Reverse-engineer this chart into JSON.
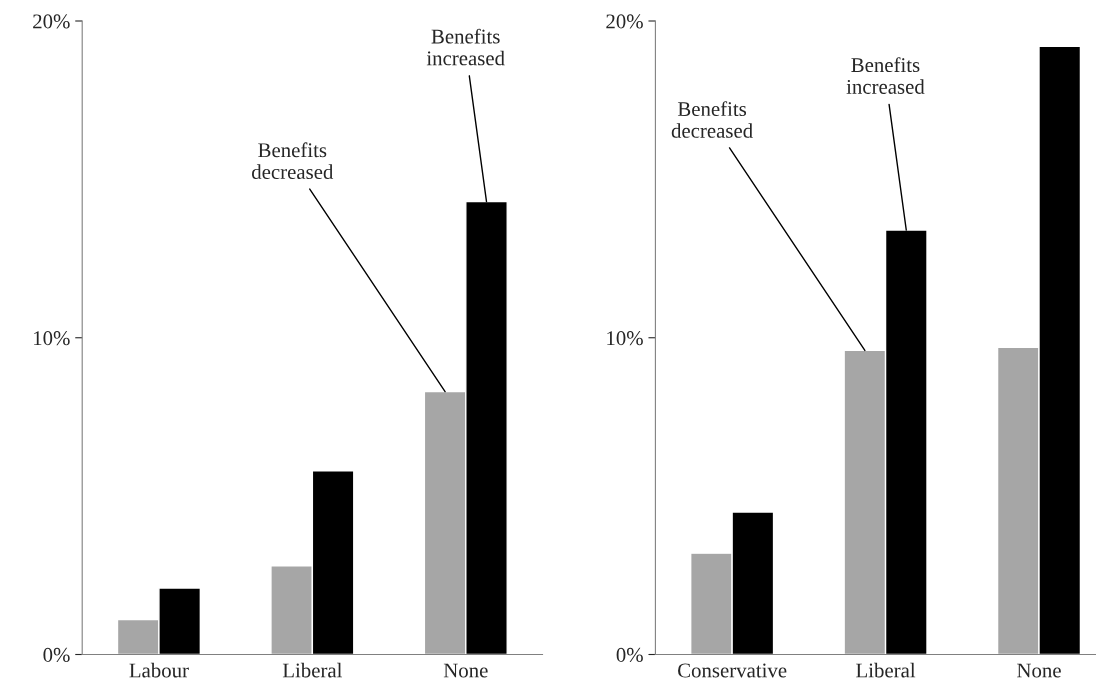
{
  "chart_data": [
    {
      "type": "bar",
      "categories": [
        "Labour",
        "Liberal",
        "None"
      ],
      "ylim": [
        0,
        20
      ],
      "yticks": [
        {
          "value": 0,
          "label": "0%"
        },
        {
          "value": 10,
          "label": "10%"
        },
        {
          "value": 20,
          "label": "20%"
        }
      ],
      "grid": false,
      "series": [
        {
          "name": "Benefits\ndecreased",
          "color": "#a6a6a6",
          "values": [
            1.1,
            2.8,
            8.3
          ]
        },
        {
          "name": "Benefits\nincreased",
          "color": "#000000",
          "values": [
            2.1,
            5.8,
            14.3
          ]
        }
      ]
    },
    {
      "type": "bar",
      "categories": [
        "Conservative",
        "Liberal",
        "None"
      ],
      "ylim": [
        0,
        20
      ],
      "yticks": [
        {
          "value": 0,
          "label": "0%"
        },
        {
          "value": 10,
          "label": "10%"
        },
        {
          "value": 20,
          "label": "20%"
        }
      ],
      "grid": false,
      "series": [
        {
          "name": "Benefits\ndecreased",
          "color": "#a6a6a6",
          "values": [
            3.2,
            9.6,
            9.7
          ]
        },
        {
          "name": "Benefits\nincreased",
          "color": "#000000",
          "values": [
            4.5,
            13.4,
            19.2
          ]
        }
      ]
    }
  ]
}
